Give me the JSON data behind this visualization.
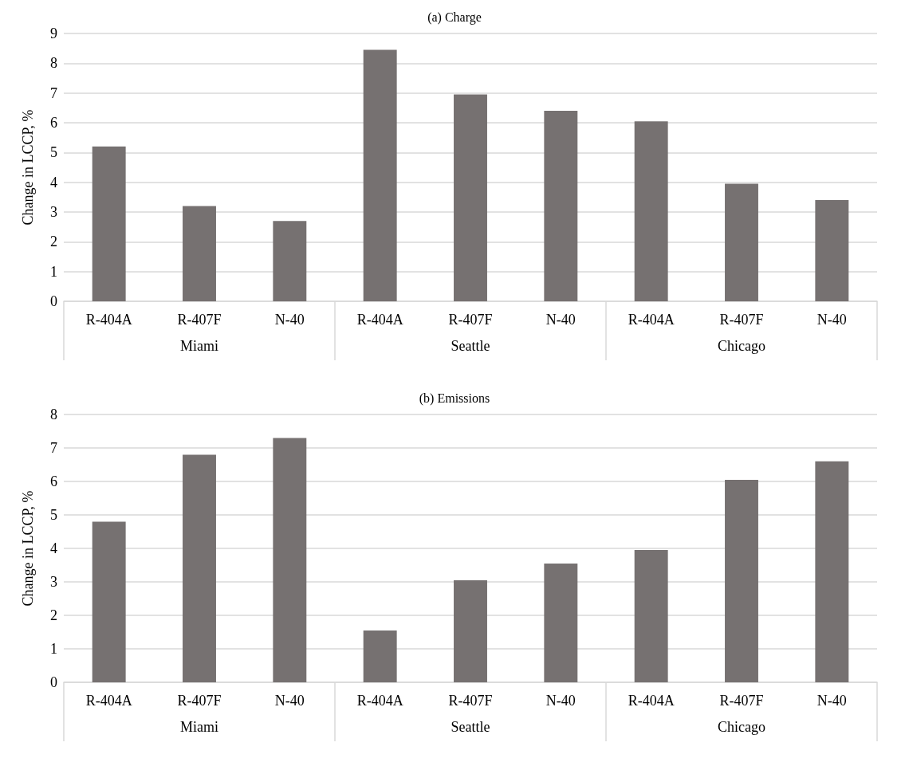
{
  "chart_data": [
    {
      "type": "bar",
      "title": "(a) Charge",
      "ylabel": "Change in LCCP, %",
      "categories": [
        "R-404A",
        "R-407F",
        "N-40",
        "R-404A",
        "R-407F",
        "N-40",
        "R-404A",
        "R-407F",
        "N-40"
      ],
      "values": [
        5.2,
        3.2,
        2.7,
        8.45,
        6.95,
        6.4,
        6.05,
        3.95,
        3.4
      ],
      "color": "#767171",
      "ylim": [
        0,
        9
      ],
      "yticks": [
        0,
        1,
        2,
        3,
        4,
        5,
        6,
        7,
        8,
        9
      ],
      "grid": "y",
      "annotations": [
        "Miami",
        "Seattle",
        "Chicago"
      ]
    },
    {
      "type": "bar",
      "title": "(b) Emissions",
      "ylabel": "Change in LCCP, %",
      "categories": [
        "R-404A",
        "R-407F",
        "N-40",
        "R-404A",
        "R-407F",
        "N-40",
        "R-404A",
        "R-407F",
        "N-40"
      ],
      "values": [
        4.8,
        6.8,
        7.3,
        1.55,
        3.05,
        3.55,
        3.95,
        6.05,
        6.6
      ],
      "color": "#767171",
      "ylim": [
        0,
        8
      ],
      "yticks": [
        0,
        1,
        2,
        3,
        4,
        5,
        6,
        7,
        8
      ],
      "grid": "y",
      "annotations": [
        "Miami",
        "Seattle",
        "Chicago"
      ]
    }
  ]
}
